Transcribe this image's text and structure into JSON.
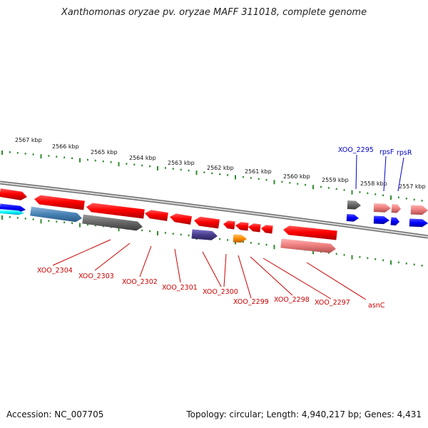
{
  "title": "Xanthomonas oryzae pv. oryzae MAFF 311018, complete genome",
  "footer": {
    "accession": "Accession: NC_007705",
    "summary": "Topology: circular; Length: 4,940,217 bp; Genes: 4,431"
  },
  "colors": {
    "tick_green": "#2e8b2e",
    "backbone": "#777777",
    "label_red": "#cc0000",
    "label_blue": "#0000cc"
  },
  "scale_labels": [
    "2567 kbp",
    "2566 kbp",
    "2565 kbp",
    "2564 kbp",
    "2563 kbp",
    "2562 kbp",
    "2561 kbp",
    "2560 kbp",
    "2559 kbp",
    "2558 kbp",
    "2557 kbp"
  ],
  "gene_labels_upper": [
    "XOO_2295",
    "rpsF",
    "rpsR"
  ],
  "gene_labels_lower": [
    "XOO_2304",
    "XOO_2303",
    "XOO_2302",
    "XOO_2301",
    "XOO_2300",
    "XOO_2299",
    "XOO_2298",
    "XOO_2297",
    "asnC"
  ]
}
